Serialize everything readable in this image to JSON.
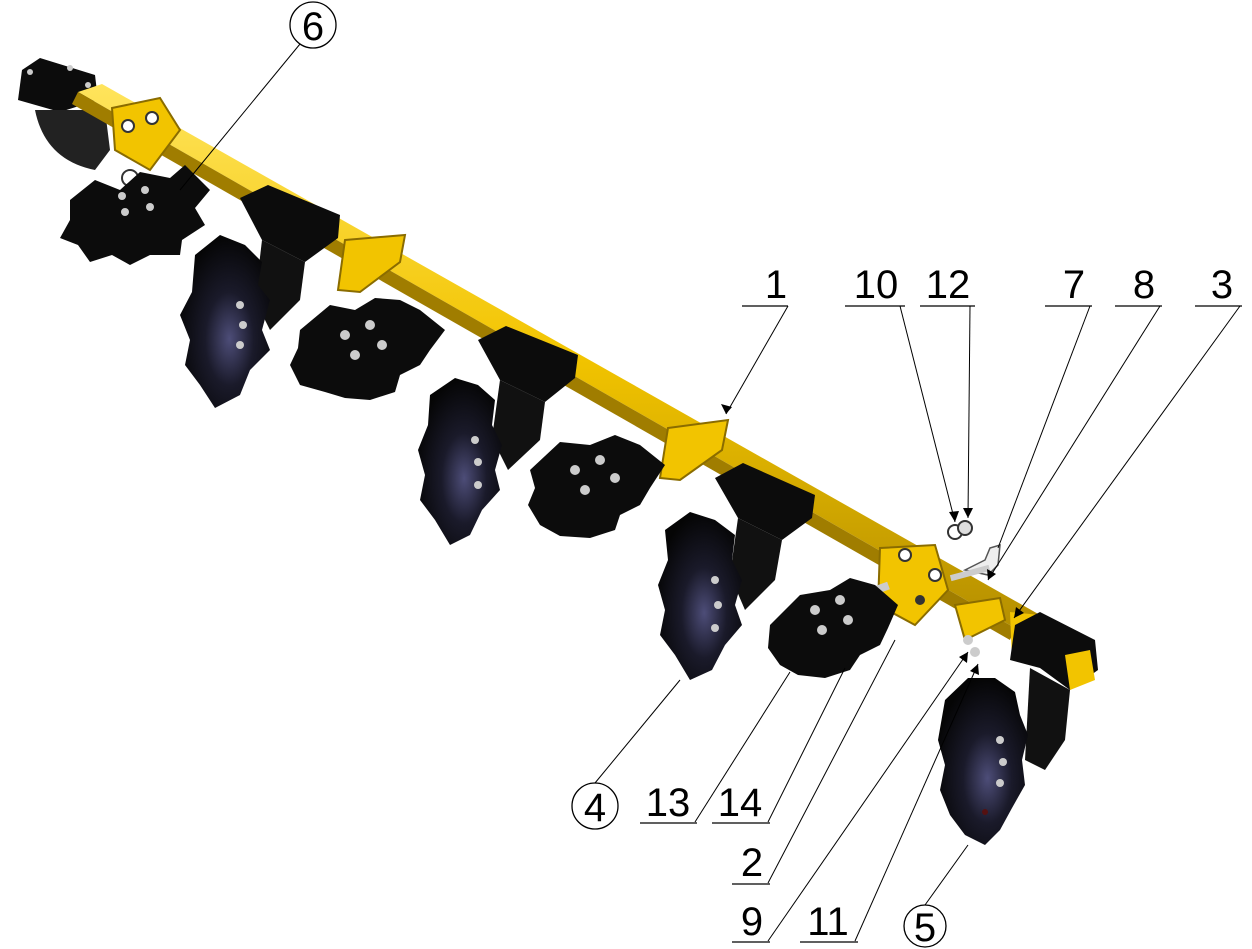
{
  "colors": {
    "frame": "#f2c400",
    "frame_shade": "#b58f00",
    "disc": "#0c0c0c",
    "disc_shine": "#4d4d78",
    "bolt": "#cccccc",
    "line": "#000000",
    "background": "#ffffff"
  },
  "callouts": [
    {
      "id": "1",
      "text": "1",
      "style": "underline"
    },
    {
      "id": "2",
      "text": "2",
      "style": "underline"
    },
    {
      "id": "3",
      "text": "3",
      "style": "underline"
    },
    {
      "id": "4",
      "text": "4",
      "style": "circle"
    },
    {
      "id": "5",
      "text": "5",
      "style": "circle"
    },
    {
      "id": "6",
      "text": "6",
      "style": "circle"
    },
    {
      "id": "7",
      "text": "7",
      "style": "underline"
    },
    {
      "id": "8",
      "text": "8",
      "style": "underline"
    },
    {
      "id": "9",
      "text": "9",
      "style": "underline"
    },
    {
      "id": "10",
      "text": "10",
      "style": "underline"
    },
    {
      "id": "11",
      "text": "11",
      "style": "underline"
    },
    {
      "id": "12",
      "text": "12",
      "style": "underline"
    },
    {
      "id": "13",
      "text": "13",
      "style": "underline"
    },
    {
      "id": "14",
      "text": "14",
      "style": "underline"
    }
  ]
}
